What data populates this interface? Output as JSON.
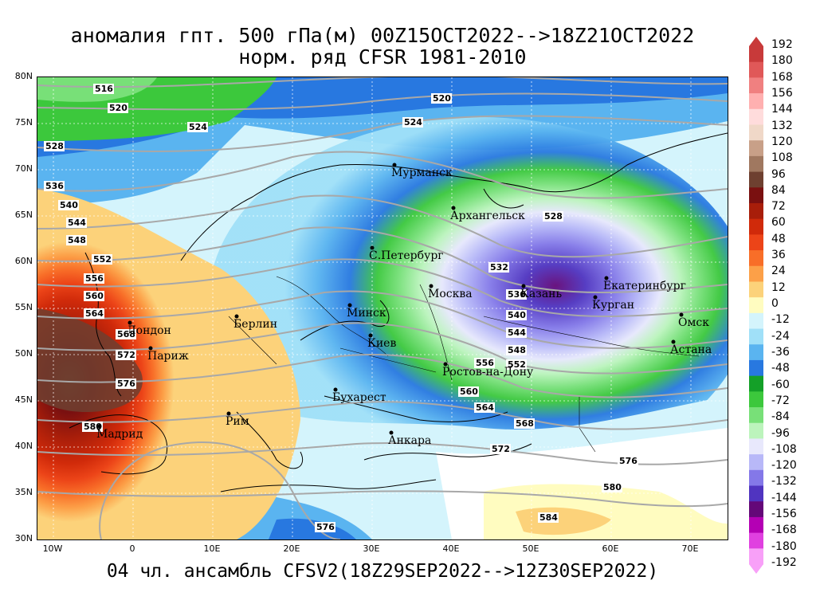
{
  "title_line1": "аномалия гпт. 500 гПа(м) 00Z15OCT2022-->18Z21OCT2022",
  "title_line2": "норм. ряд CFSR 1981-2010",
  "bottom_caption": "04 чл. ансамбль CFSV2(18Z29SEP2022-->12Z30SEP2022)",
  "lat_labels": [
    "80N",
    "75N",
    "70N",
    "65N",
    "60N",
    "55N",
    "50N",
    "45N",
    "40N",
    "35N",
    "30N"
  ],
  "lon_labels": [
    "10W",
    "0",
    "10E",
    "20E",
    "30E",
    "40E",
    "50E",
    "60E",
    "70E"
  ],
  "colorbar": {
    "labels": [
      "192",
      "180",
      "168",
      "156",
      "144",
      "132",
      "120",
      "108",
      "96",
      "84",
      "72",
      "60",
      "48",
      "36",
      "24",
      "12",
      "0",
      "-12",
      "-24",
      "-36",
      "-48",
      "-60",
      "-72",
      "-84",
      "-96",
      "-108",
      "-120",
      "-132",
      "-144",
      "-156",
      "-168",
      "-180",
      "-192"
    ],
    "colors": [
      "#c83a3a",
      "#e05858",
      "#f08080",
      "#ffb0b0",
      "#ffdcdc",
      "#f0d8c8",
      "#c8a088",
      "#a07860",
      "#6e4030",
      "#7a1010",
      "#a81e0a",
      "#d02a0a",
      "#ec4418",
      "#f86e28",
      "#fca048",
      "#fcd27a",
      "#fffcc0",
      "#d4f4fc",
      "#a0e0f8",
      "#5ab4f0",
      "#2878e0",
      "#14a028",
      "#3cc83c",
      "#78e078",
      "#bcf4bc",
      "#e8e8fc",
      "#b8b8f8",
      "#8478e8",
      "#5034c0",
      "#640878",
      "#b400b4",
      "#e040e0",
      "#f8a0f8"
    ]
  },
  "contour_labels": [
    "516",
    "520",
    "520",
    "524",
    "524",
    "528",
    "528",
    "532",
    "536",
    "536",
    "540",
    "540",
    "544",
    "544",
    "548",
    "548",
    "552",
    "552",
    "556",
    "556",
    "560",
    "560",
    "564",
    "564",
    "568",
    "568",
    "572",
    "572",
    "576",
    "576",
    "576",
    "580",
    "580",
    "584"
  ],
  "cities": [
    "Мурманск",
    "Архангельск",
    "С.Петербург",
    "Москва",
    "Казань",
    "Екатеринбург",
    "Курган",
    "Омск",
    "Астана",
    "Минск",
    "Берлин",
    "Киев",
    "Ростов-на-Дону",
    "Бухарест",
    "Анкара",
    "Рим",
    "Мадрид",
    "Лондон",
    "Париж"
  ]
}
